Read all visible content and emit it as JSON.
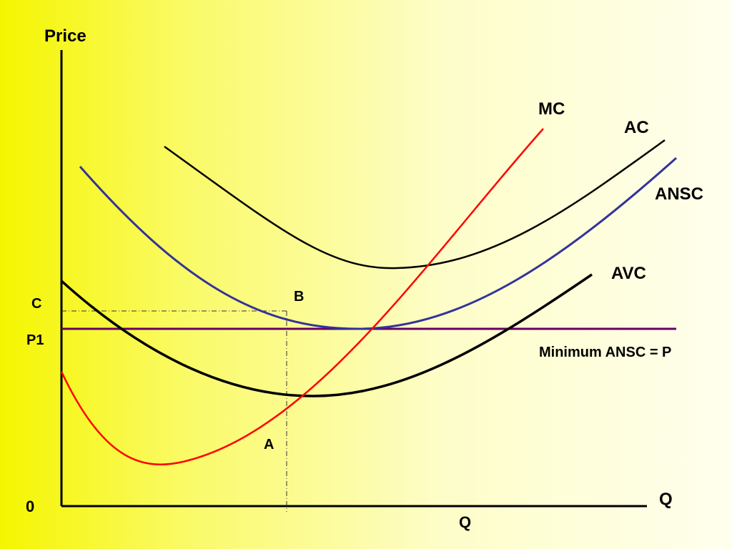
{
  "labels": {
    "y_axis": "Price",
    "x_axis": "Q",
    "origin": "0",
    "price_c": "C",
    "price_p1": "P1",
    "quantity_q": "Q",
    "point_a": "A",
    "point_b": "B",
    "curve_mc": "MC",
    "curve_ac": "AC",
    "curve_ansc": "ANSC",
    "curve_avc": "AVC",
    "price_line": "Minimum ANSC = P"
  },
  "colors": {
    "mc": "#ff0000",
    "ac": "#000000",
    "ansc": "#333399",
    "avc": "#000000",
    "price_line": "#660066",
    "axes": "#000000",
    "guides": "#333333"
  }
}
